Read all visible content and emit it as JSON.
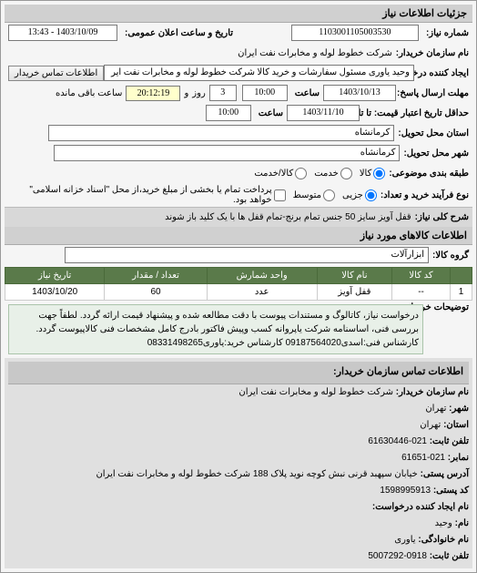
{
  "headers": {
    "needInfo": "جزئیات اطلاعات نیاز",
    "goodsInfo": "اطلاعات کالاهای مورد نیاز",
    "contactInfo": "اطلاعات تماس سازمان خریدار:"
  },
  "fields": {
    "needNo": {
      "label": "شماره نیاز:",
      "value": "1103001105003530"
    },
    "announceDate": {
      "label": "تاریخ و ساعت اعلان عمومی:",
      "value": "1403/10/09 - 13:43"
    },
    "buyerName": {
      "label": "نام سازمان خریدار:",
      "value": "شرکت خطوط لوله و مخابرات نفت ایران"
    },
    "requestCreator": {
      "label": "ایجاد کننده درخواست:",
      "value": "وحید یاوری مسئول سفارشات و خرید کالا   شرکت خطوط لوله و مخابرات نفت ایر"
    },
    "contactBtn": "اطلاعات تماس خریدار",
    "deadline": {
      "label": "مهلت ارسال پاسخ:",
      "toLabel": "تا تاریخ:",
      "date": "1403/10/13",
      "timeLabel": "ساعت",
      "time": "10:00",
      "andLabel": "و",
      "countdown": "20:12:19",
      "days": "3",
      "dayLabel": "روز",
      "remaining": "ساعت باقی مانده"
    },
    "priceDeadline": {
      "label": "حداقل تاریخ اعتبار قیمت: تا تاریخ:",
      "date": "1403/11/10",
      "timeLabel": "ساعت",
      "time": "10:00"
    },
    "deliveryProvince": {
      "label": "استان محل تحویل:",
      "value": "کرمانشاه"
    },
    "deliveryCity": {
      "label": "شهر محل تحویل:",
      "value": "کرمانشاه"
    },
    "budgetType": {
      "label": "طبقه بندی موضوعی:",
      "options": [
        {
          "label": "کالا",
          "checked": true
        },
        {
          "label": "خدمت",
          "checked": false
        },
        {
          "label": "کالا/خدمت",
          "checked": false
        }
      ]
    },
    "processType": {
      "label": "نوع فرآیند خرید و تعداد:",
      "options": [
        {
          "label": "جزیی",
          "checked": true
        },
        {
          "label": "متوسط",
          "checked": false
        }
      ],
      "note": "پرداخت تمام یا بخشی از مبلغ خرید،از محل \"اسناد خزانه اسلامی\" خواهد بود."
    },
    "needTitle": {
      "label": "شرح کلی نیاز:",
      "value": "قفل آویز سایز 50 جنس تمام برنج-تمام قفل ها با یک کلید باز شوند"
    },
    "goodsGroup": {
      "label": "گروه کالا:",
      "value": "ابزارآلات"
    }
  },
  "table": {
    "columns": [
      "",
      "کد کالا",
      "نام کالا",
      "واحد شمارش",
      "تعداد / مقدار",
      "تاریخ نیاز"
    ],
    "rows": [
      [
        "1",
        "--",
        "قفل آویز",
        "عدد",
        "60",
        "1403/10/20"
      ]
    ]
  },
  "description": {
    "label": "توضیحات خریدار:",
    "text": "درخواست نیاز، کاتالوگ و مستندات پیوست با دقت مطالعه شده و پیشنهاد قیمت ارائه گردد. لطفاً جهت بررسی فنی، اساسنامه شرکت یاپروانه کسب وپیش فاکتور بادرج کامل مشخصات فنی کالاپیوست گردد. کارشناس فنی:اسدی09187564020 کارشناس خرید:یاوری08331498265"
  },
  "contact": {
    "orgName": {
      "label": "نام سازمان خریدار:",
      "value": "شرکت خطوط لوله و مخابرات نفت ایران"
    },
    "city": {
      "label": "شهر:",
      "value": "تهران"
    },
    "province": {
      "label": "استان:",
      "value": "تهران"
    },
    "phone": {
      "label": "تلفن ثابت:",
      "value": "021-61630446"
    },
    "fax": {
      "label": "نمابر:",
      "value": "021-61651"
    },
    "address": {
      "label": "آدرس پستی:",
      "value": "خیابان سپهبد قرنی نبش کوچه نوید پلاک 188 شرکت خطوط لوله و مخابرات نفت ایران"
    },
    "postalCode": {
      "label": "کد پستی:",
      "value": "1598995913"
    },
    "requesterName": {
      "label": "نام ایجاد کننده درخواست:",
      "value": ""
    },
    "firstName": {
      "label": "نام:",
      "value": "وحید"
    },
    "lastName": {
      "label": "نام خانوادگی:",
      "value": "یاوری"
    },
    "mobile": {
      "label": "تلفن ثابت:",
      "value": "0918-5007292"
    }
  }
}
